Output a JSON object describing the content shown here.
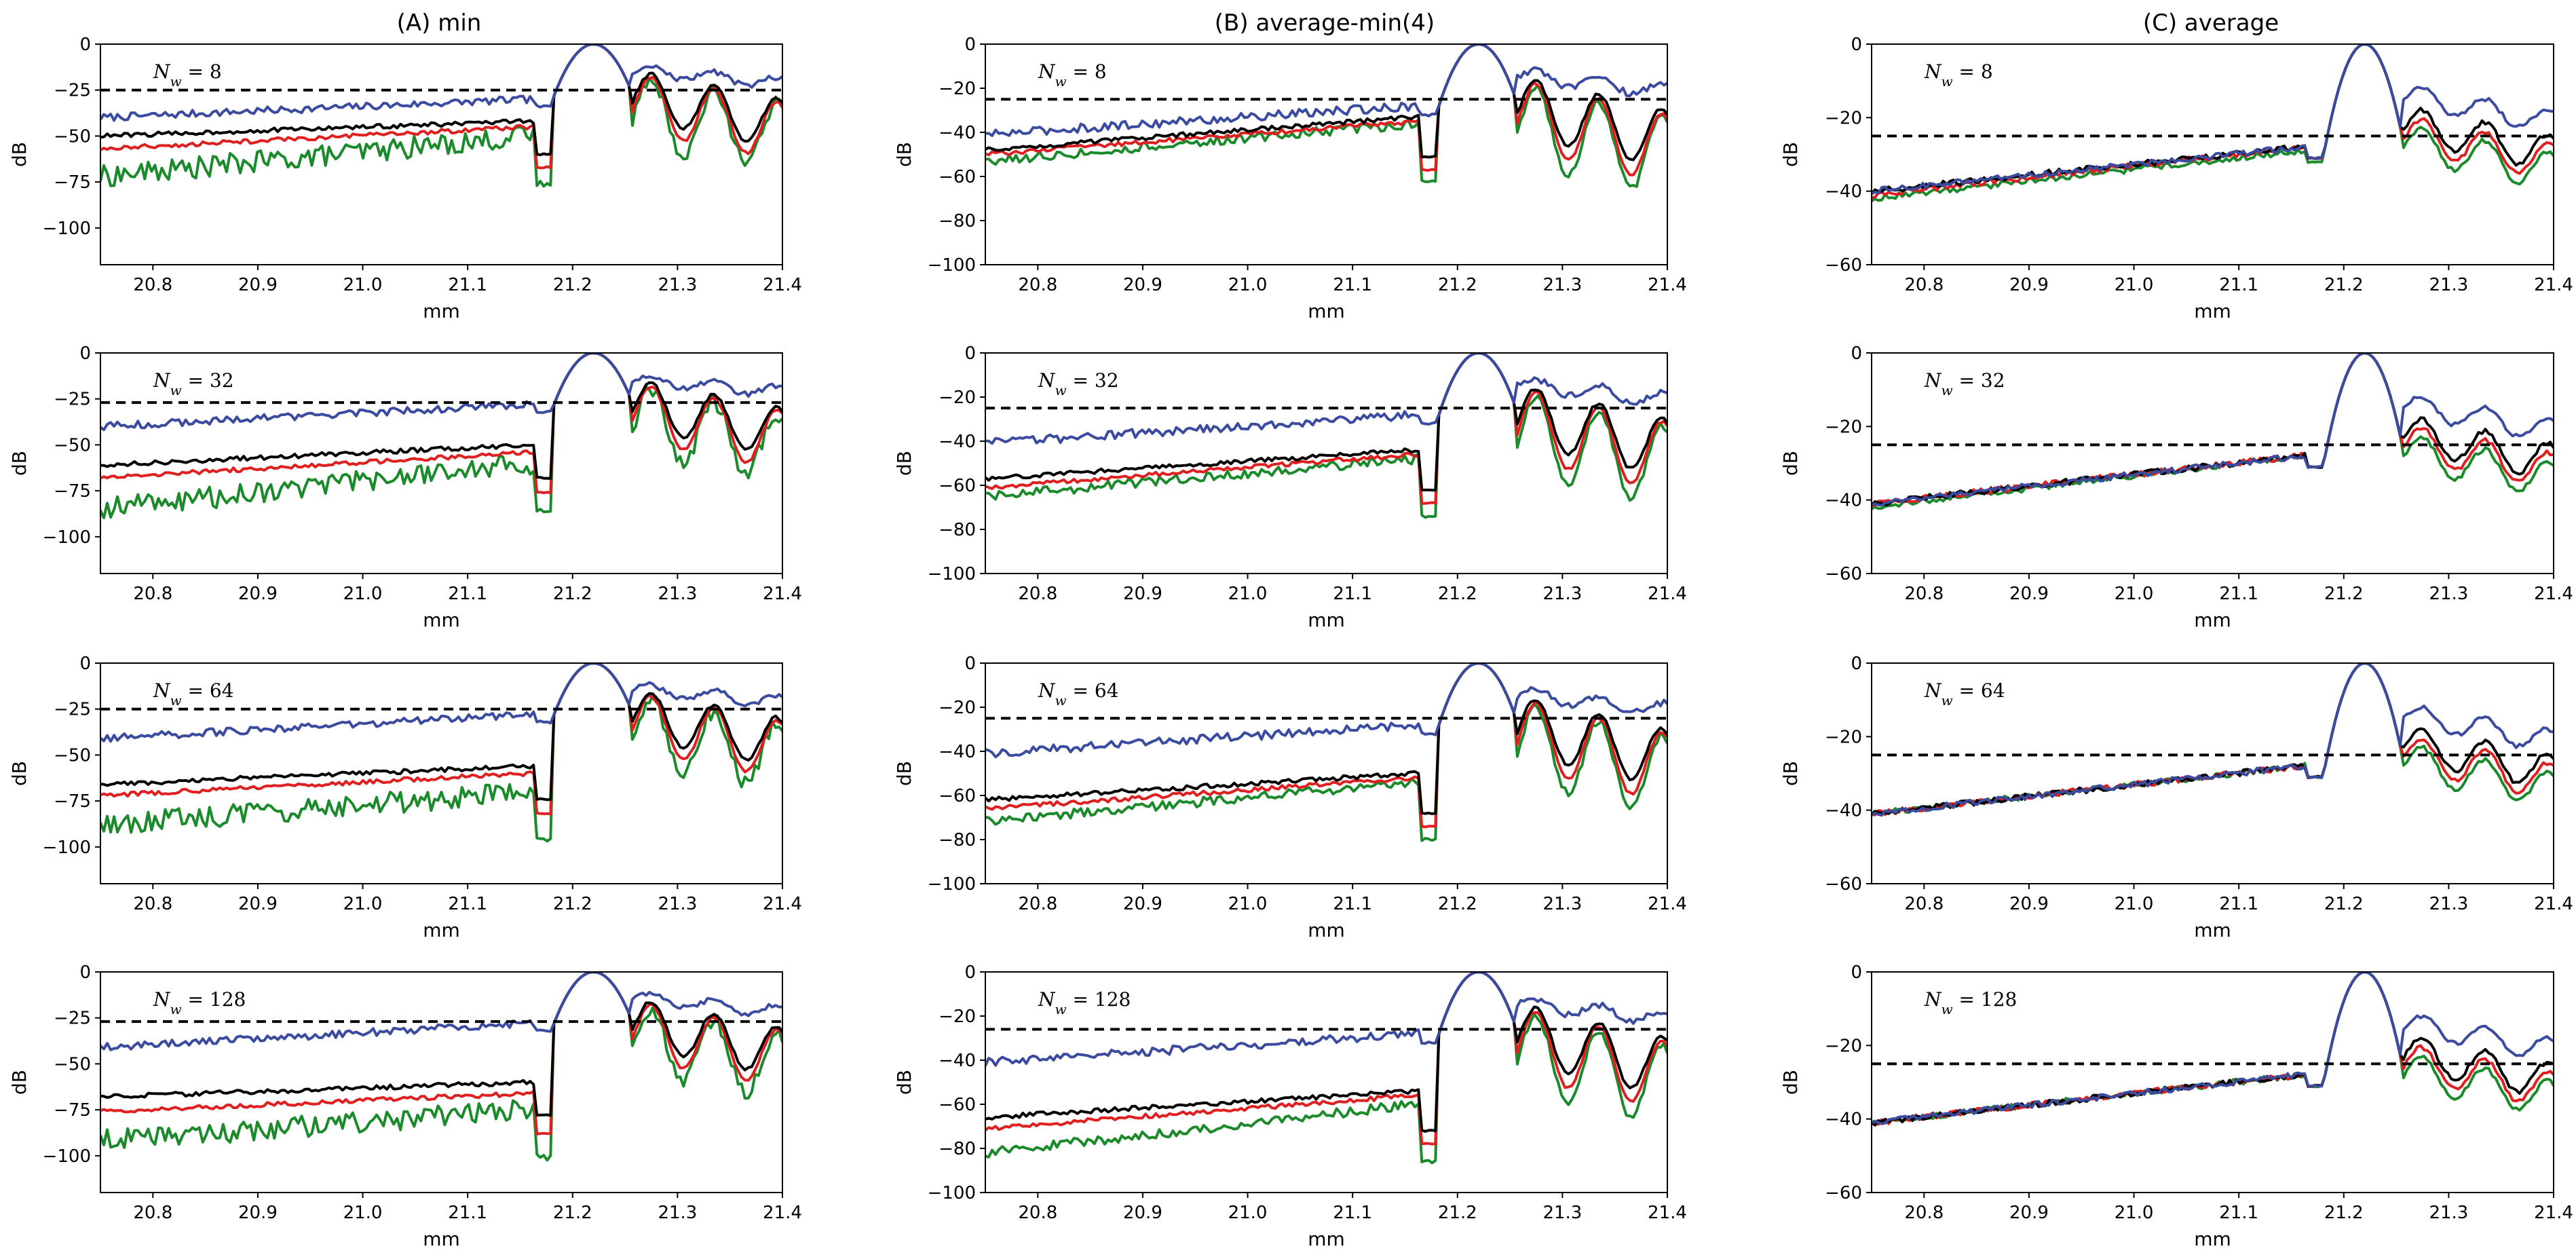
{
  "figure": {
    "column_titles": [
      "(A) min",
      "(B) average-min(4)",
      "(C) average"
    ],
    "row_labels": [
      "N_w = 8",
      "N_w = 32",
      "N_w = 64",
      "N_w = 128"
    ],
    "row_nw": [
      8,
      32,
      64,
      128
    ],
    "xlabel": "mm",
    "ylabel": "dB",
    "threshold_db": -25,
    "colors": {
      "blue": "#3a4ba0",
      "black": "#000000",
      "red": "#e02020",
      "green": "#1a8a2a",
      "threshold": "#000000"
    }
  },
  "chart_data": [
    {
      "type": "line",
      "title": "(A) min",
      "nw_label": "N_w = 8",
      "row": 0,
      "col": 0,
      "xlim": [
        20.75,
        21.4
      ],
      "ylim": [
        -120,
        0
      ],
      "yticks": [
        0,
        -25,
        -50,
        -75,
        -100
      ],
      "xticks": [
        20.8,
        20.9,
        21.0,
        21.1,
        21.2,
        21.3,
        21.4
      ],
      "xlabel": "mm",
      "ylabel": "dB",
      "threshold": -25,
      "series": [
        {
          "name": "blue",
          "floor_start": -40,
          "floor_end": -30
        },
        {
          "name": "black",
          "floor_start": -50,
          "floor_end": -42
        },
        {
          "name": "red",
          "floor_start": -57,
          "floor_end": -45
        },
        {
          "name": "green",
          "floor_start": -72,
          "floor_end": -50
        }
      ]
    },
    {
      "type": "line",
      "title": "(B) average-min(4)",
      "nw_label": "N_w = 8",
      "row": 0,
      "col": 1,
      "xlim": [
        20.75,
        21.4
      ],
      "ylim": [
        -100,
        0
      ],
      "yticks": [
        0,
        -20,
        -40,
        -60,
        -80,
        -100
      ],
      "xticks": [
        20.8,
        20.9,
        21.0,
        21.1,
        21.2,
        21.3,
        21.4
      ],
      "xlabel": "mm",
      "ylabel": "dB",
      "threshold": -25,
      "series": [
        {
          "name": "blue",
          "floor_start": -41,
          "floor_end": -28
        },
        {
          "name": "black",
          "floor_start": -48,
          "floor_end": -33
        },
        {
          "name": "red",
          "floor_start": -50,
          "floor_end": -35
        },
        {
          "name": "green",
          "floor_start": -53,
          "floor_end": -36
        }
      ]
    },
    {
      "type": "line",
      "title": "(C) average",
      "nw_label": "N_w = 8",
      "row": 0,
      "col": 2,
      "xlim": [
        20.75,
        21.4
      ],
      "ylim": [
        -60,
        0
      ],
      "yticks": [
        0,
        -20,
        -40,
        -60
      ],
      "xticks": [
        20.8,
        20.9,
        21.0,
        21.1,
        21.2,
        21.3,
        21.4
      ],
      "xlabel": "mm",
      "ylabel": "dB",
      "threshold": -25,
      "series": [
        {
          "name": "blue",
          "floor_start": -40,
          "floor_end": -28
        },
        {
          "name": "black",
          "floor_start": -40,
          "floor_end": -28
        },
        {
          "name": "red",
          "floor_start": -41,
          "floor_end": -28
        },
        {
          "name": "green",
          "floor_start": -42,
          "floor_end": -29
        }
      ]
    },
    {
      "type": "line",
      "title": "(A) min",
      "nw_label": "N_w = 32",
      "row": 1,
      "col": 0,
      "xlim": [
        20.75,
        21.4
      ],
      "ylim": [
        -120,
        0
      ],
      "yticks": [
        0,
        -25,
        -50,
        -75,
        -100
      ],
      "xticks": [
        20.8,
        20.9,
        21.0,
        21.1,
        21.2,
        21.3,
        21.4
      ],
      "xlabel": "mm",
      "ylabel": "dB",
      "threshold": -27,
      "series": [
        {
          "name": "blue",
          "floor_start": -40,
          "floor_end": -28
        },
        {
          "name": "black",
          "floor_start": -61,
          "floor_end": -50
        },
        {
          "name": "red",
          "floor_start": -68,
          "floor_end": -54
        },
        {
          "name": "green",
          "floor_start": -85,
          "floor_end": -60
        }
      ]
    },
    {
      "type": "line",
      "title": "(B) average-min(4)",
      "nw_label": "N_w = 32",
      "row": 1,
      "col": 1,
      "xlim": [
        20.75,
        21.4
      ],
      "ylim": [
        -100,
        0
      ],
      "yticks": [
        0,
        -20,
        -40,
        -60,
        -80,
        -100
      ],
      "xticks": [
        20.8,
        20.9,
        21.0,
        21.1,
        21.2,
        21.3,
        21.4
      ],
      "xlabel": "mm",
      "ylabel": "dB",
      "threshold": -25,
      "series": [
        {
          "name": "blue",
          "floor_start": -41,
          "floor_end": -28
        },
        {
          "name": "black",
          "floor_start": -57,
          "floor_end": -44
        },
        {
          "name": "red",
          "floor_start": -61,
          "floor_end": -46
        },
        {
          "name": "green",
          "floor_start": -65,
          "floor_end": -48
        }
      ]
    },
    {
      "type": "line",
      "title": "(C) average",
      "nw_label": "N_w = 32",
      "row": 1,
      "col": 2,
      "xlim": [
        20.75,
        21.4
      ],
      "ylim": [
        -60,
        0
      ],
      "yticks": [
        0,
        -20,
        -40,
        -60
      ],
      "xticks": [
        20.8,
        20.9,
        21.0,
        21.1,
        21.2,
        21.3,
        21.4
      ],
      "xlabel": "mm",
      "ylabel": "dB",
      "threshold": -25,
      "series": [
        {
          "name": "blue",
          "floor_start": -41,
          "floor_end": -28
        },
        {
          "name": "black",
          "floor_start": -41,
          "floor_end": -28
        },
        {
          "name": "red",
          "floor_start": -41,
          "floor_end": -28
        },
        {
          "name": "green",
          "floor_start": -42,
          "floor_end": -28
        }
      ]
    },
    {
      "type": "line",
      "title": "(A) min",
      "nw_label": "N_w = 64",
      "row": 2,
      "col": 0,
      "xlim": [
        20.75,
        21.4
      ],
      "ylim": [
        -120,
        0
      ],
      "yticks": [
        0,
        -25,
        -50,
        -75,
        -100
      ],
      "xticks": [
        20.8,
        20.9,
        21.0,
        21.1,
        21.2,
        21.3,
        21.4
      ],
      "xlabel": "mm",
      "ylabel": "dB",
      "threshold": -25,
      "series": [
        {
          "name": "blue",
          "floor_start": -41,
          "floor_end": -28
        },
        {
          "name": "black",
          "floor_start": -66,
          "floor_end": -56
        },
        {
          "name": "red",
          "floor_start": -72,
          "floor_end": -60
        },
        {
          "name": "green",
          "floor_start": -88,
          "floor_end": -70
        }
      ]
    },
    {
      "type": "line",
      "title": "(B) average-min(4)",
      "nw_label": "N_w = 64",
      "row": 2,
      "col": 1,
      "xlim": [
        20.75,
        21.4
      ],
      "ylim": [
        -100,
        0
      ],
      "yticks": [
        0,
        -20,
        -40,
        -60,
        -80,
        -100
      ],
      "xticks": [
        20.8,
        20.9,
        21.0,
        21.1,
        21.2,
        21.3,
        21.4
      ],
      "xlabel": "mm",
      "ylabel": "dB",
      "threshold": -25,
      "series": [
        {
          "name": "blue",
          "floor_start": -41,
          "floor_end": -28
        },
        {
          "name": "black",
          "floor_start": -62,
          "floor_end": -50
        },
        {
          "name": "red",
          "floor_start": -66,
          "floor_end": -52
        },
        {
          "name": "green",
          "floor_start": -72,
          "floor_end": -54
        }
      ]
    },
    {
      "type": "line",
      "title": "(C) average",
      "nw_label": "N_w = 64",
      "row": 2,
      "col": 2,
      "xlim": [
        20.75,
        21.4
      ],
      "ylim": [
        -60,
        0
      ],
      "yticks": [
        0,
        -20,
        -40,
        -60
      ],
      "xticks": [
        20.8,
        20.9,
        21.0,
        21.1,
        21.2,
        21.3,
        21.4
      ],
      "xlabel": "mm",
      "ylabel": "dB",
      "threshold": -25,
      "series": [
        {
          "name": "blue",
          "floor_start": -41,
          "floor_end": -28
        },
        {
          "name": "black",
          "floor_start": -41,
          "floor_end": -28
        },
        {
          "name": "red",
          "floor_start": -41,
          "floor_end": -28
        },
        {
          "name": "green",
          "floor_start": -41,
          "floor_end": -28
        }
      ]
    },
    {
      "type": "line",
      "title": "(A) min",
      "nw_label": "N_w = 128",
      "row": 3,
      "col": 0,
      "xlim": [
        20.75,
        21.4
      ],
      "ylim": [
        -120,
        0
      ],
      "yticks": [
        0,
        -25,
        -50,
        -75,
        -100
      ],
      "xticks": [
        20.8,
        20.9,
        21.0,
        21.1,
        21.2,
        21.3,
        21.4
      ],
      "xlabel": "mm",
      "ylabel": "dB",
      "threshold": -27,
      "series": [
        {
          "name": "blue",
          "floor_start": -41,
          "floor_end": -28
        },
        {
          "name": "black",
          "floor_start": -68,
          "floor_end": -60
        },
        {
          "name": "red",
          "floor_start": -76,
          "floor_end": -66
        },
        {
          "name": "green",
          "floor_start": -92,
          "floor_end": -75
        }
      ]
    },
    {
      "type": "line",
      "title": "(B) average-min(4)",
      "nw_label": "N_w = 128",
      "row": 3,
      "col": 1,
      "xlim": [
        20.75,
        21.4
      ],
      "ylim": [
        -100,
        0
      ],
      "yticks": [
        0,
        -20,
        -40,
        -60,
        -80,
        -100
      ],
      "xticks": [
        20.8,
        20.9,
        21.0,
        21.1,
        21.2,
        21.3,
        21.4
      ],
      "xlabel": "mm",
      "ylabel": "dB",
      "threshold": -26,
      "series": [
        {
          "name": "blue",
          "floor_start": -41,
          "floor_end": -28
        },
        {
          "name": "black",
          "floor_start": -66,
          "floor_end": -54
        },
        {
          "name": "red",
          "floor_start": -71,
          "floor_end": -56
        },
        {
          "name": "green",
          "floor_start": -82,
          "floor_end": -60
        }
      ]
    },
    {
      "type": "line",
      "title": "(C) average",
      "nw_label": "N_w = 128",
      "row": 3,
      "col": 2,
      "xlim": [
        20.75,
        21.4
      ],
      "ylim": [
        -60,
        0
      ],
      "yticks": [
        0,
        -20,
        -40,
        -60
      ],
      "xticks": [
        20.8,
        20.9,
        21.0,
        21.1,
        21.2,
        21.3,
        21.4
      ],
      "xlabel": "mm",
      "ylabel": "dB",
      "threshold": -25,
      "series": [
        {
          "name": "blue",
          "floor_start": -41,
          "floor_end": -28
        },
        {
          "name": "black",
          "floor_start": -41,
          "floor_end": -28
        },
        {
          "name": "red",
          "floor_start": -41,
          "floor_end": -28
        },
        {
          "name": "green",
          "floor_start": -41,
          "floor_end": -28
        }
      ]
    }
  ]
}
